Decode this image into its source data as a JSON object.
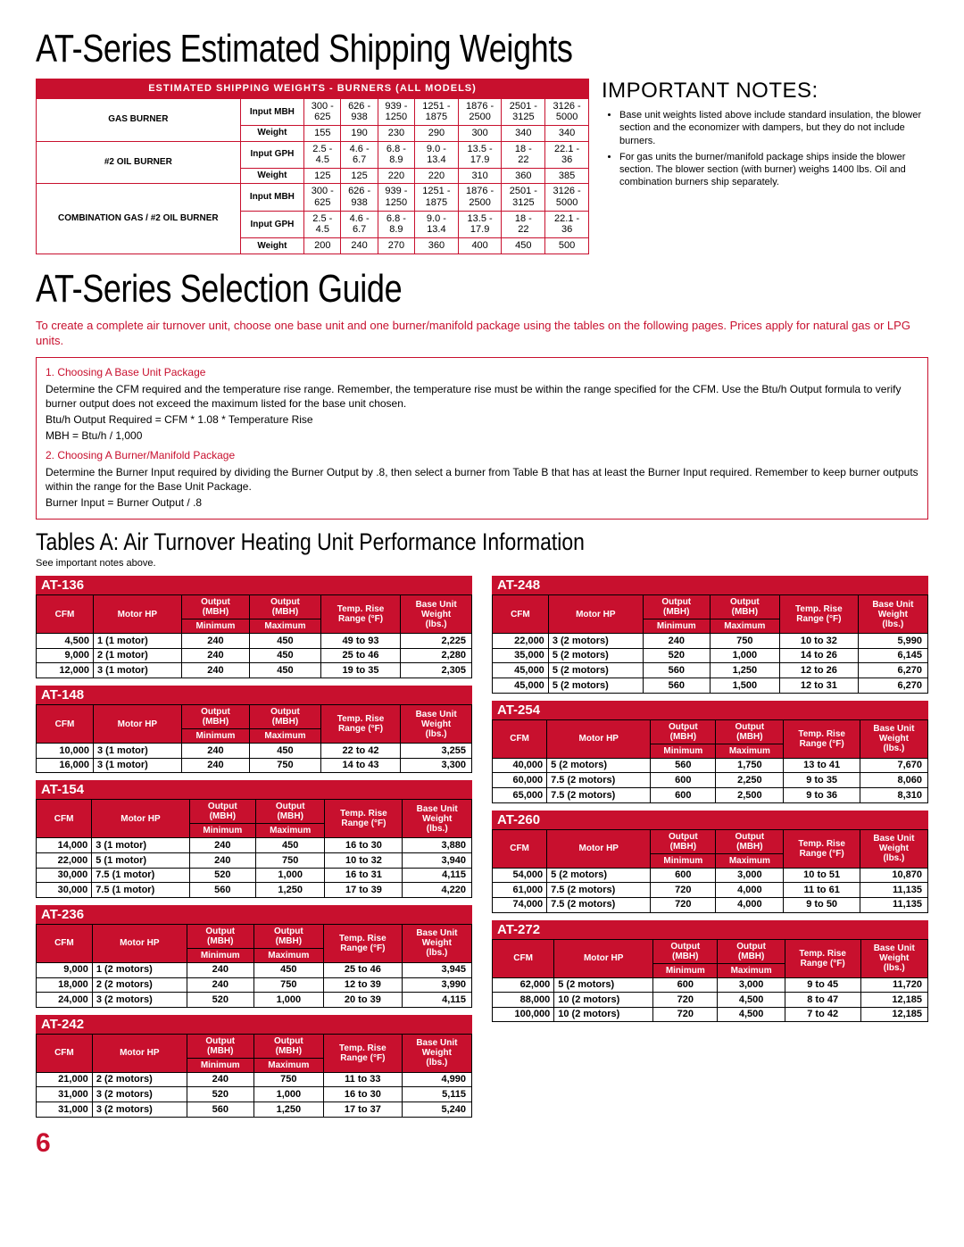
{
  "colors": {
    "accent": "#c8102e",
    "bg": "#ffffff",
    "text": "#000000"
  },
  "title1": "AT-Series Estimated Shipping Weights",
  "notesTitle": "IMPORTANT NOTES:",
  "notes": [
    "Base unit weights listed above include standard insulation, the blower section and the economizer with dampers, but they do not include burners.",
    "For gas units the burner/manifold package ships inside the blower section. The blower section (with burner) weighs 1400 lbs. Oil and combination burners ship separately."
  ],
  "shipping": {
    "header": "ESTIMATED SHIPPING WEIGHTS - BURNERS (ALL MODELS)",
    "cols": [
      "300 - 625",
      "626 - 938",
      "939 - 1250",
      "1251 - 1875",
      "1876 - 2500",
      "2501 - 3125",
      "3126 - 5000"
    ],
    "groups": [
      {
        "label": "GAS BURNER",
        "rows": [
          {
            "k": "Input MBH",
            "v": [
              "300 - 625",
              "626 - 938",
              "939 - 1250",
              "1251 - 1875",
              "1876 - 2500",
              "2501 - 3125",
              "3126 - 5000"
            ]
          },
          {
            "k": "Weight",
            "v": [
              "155",
              "190",
              "230",
              "290",
              "300",
              "340",
              "340"
            ]
          }
        ]
      },
      {
        "label": "#2 OIL BURNER",
        "rows": [
          {
            "k": "Input GPH",
            "v": [
              "2.5 - 4.5",
              "4.6 - 6.7",
              "6.8 - 8.9",
              "9.0 - 13.4",
              "13.5 - 17.9",
              "18 - 22",
              "22.1 - 36"
            ]
          },
          {
            "k": "Weight",
            "v": [
              "125",
              "125",
              "220",
              "220",
              "310",
              "360",
              "385"
            ]
          }
        ]
      },
      {
        "label": "COMBINATION GAS / #2 OIL BURNER",
        "rows": [
          {
            "k": "Input MBH",
            "v": [
              "300 - 625",
              "626 - 938",
              "939 - 1250",
              "1251 - 1875",
              "1876 - 2500",
              "2501 - 3125",
              "3126 - 5000"
            ]
          },
          {
            "k": "Input GPH",
            "v": [
              "2.5 - 4.5",
              "4.6 - 6.7",
              "6.8 - 8.9",
              "9.0 - 13.4",
              "13.5 - 17.9",
              "18 - 22",
              "22.1 - 36"
            ]
          },
          {
            "k": "Weight",
            "v": [
              "200",
              "240",
              "270",
              "360",
              "400",
              "450",
              "500"
            ]
          }
        ]
      }
    ]
  },
  "title2": "AT-Series Selection Guide",
  "intro": "To create a complete air turnover unit, choose one base unit and one burner/manifold package using the tables on the following pages. Prices apply for natural gas or LPG units.",
  "selection": {
    "step1": "1. Choosing A Base Unit Package",
    "s1a": "Determine the CFM required and the temperature rise range. Remember, the temperature rise must be within the range specified for the CFM. Use the Btu/h Output formula to verify burner output does not exceed the maximum listed for the base unit chosen.",
    "s1b": "Btu/h Output Required = CFM * 1.08 * Temperature Rise",
    "s1c": "MBH = Btu/h / 1,000",
    "step2": "2. Choosing A Burner/Manifold Package",
    "s2a": "Determine the Burner Input required by dividing the Burner Output by .8, then select a burner from Table B that has at least the Burner Input required. Remember to keep burner outputs within the range for the Base Unit Package.",
    "s2b": "Burner Input = Burner Output / .8"
  },
  "tablesTitle": "Tables A: Air Turnover Heating Unit Performance Information",
  "tablesNote": "See important notes above.",
  "perfHeaders": [
    "CFM",
    "Motor HP",
    "Output (MBH) Minimum",
    "Output (MBH) Maximum",
    "Temp. Rise Range (°F)",
    "Base Unit Weight (lbs.)"
  ],
  "leftTables": [
    {
      "name": "AT-136",
      "rows": [
        [
          "4,500",
          "1 (1 motor)",
          "240",
          "450",
          "49 to 93",
          "2,225"
        ],
        [
          "9,000",
          "2 (1 motor)",
          "240",
          "450",
          "25 to 46",
          "2,280"
        ],
        [
          "12,000",
          "3 (1 motor)",
          "240",
          "450",
          "19 to 35",
          "2,305"
        ]
      ]
    },
    {
      "name": "AT-148",
      "rows": [
        [
          "10,000",
          "3 (1 motor)",
          "240",
          "450",
          "22 to 42",
          "3,255"
        ],
        [
          "16,000",
          "3 (1 motor)",
          "240",
          "750",
          "14 to 43",
          "3,300"
        ]
      ]
    },
    {
      "name": "AT-154",
      "rows": [
        [
          "14,000",
          "3 (1 motor)",
          "240",
          "450",
          "16 to 30",
          "3,880"
        ],
        [
          "22,000",
          "5 (1 motor)",
          "240",
          "750",
          "10 to 32",
          "3,940"
        ],
        [
          "30,000",
          "7.5 (1 motor)",
          "520",
          "1,000",
          "16 to 31",
          "4,115"
        ],
        [
          "30,000",
          "7.5 (1 motor)",
          "560",
          "1,250",
          "17 to 39",
          "4,220"
        ]
      ]
    },
    {
      "name": "AT-236",
      "rows": [
        [
          "9,000",
          "1 (2 motors)",
          "240",
          "450",
          "25 to 46",
          "3,945"
        ],
        [
          "18,000",
          "2 (2 motors)",
          "240",
          "750",
          "12 to 39",
          "3,990"
        ],
        [
          "24,000",
          "3 (2 motors)",
          "520",
          "1,000",
          "20 to 39",
          "4,115"
        ]
      ]
    },
    {
      "name": "AT-242",
      "rows": [
        [
          "21,000",
          "2 (2 motors)",
          "240",
          "750",
          "11 to 33",
          "4,990"
        ],
        [
          "31,000",
          "3 (2 motors)",
          "520",
          "1,000",
          "16 to 30",
          "5,115"
        ],
        [
          "31,000",
          "3 (2 motors)",
          "560",
          "1,250",
          "17 to 37",
          "5,240"
        ]
      ]
    }
  ],
  "rightTables": [
    {
      "name": "AT-248",
      "rows": [
        [
          "22,000",
          "3 (2 motors)",
          "240",
          "750",
          "10 to 32",
          "5,990"
        ],
        [
          "35,000",
          "5 (2 motors)",
          "520",
          "1,000",
          "14 to 26",
          "6,145"
        ],
        [
          "45,000",
          "5 (2 motors)",
          "560",
          "1,250",
          "12 to 26",
          "6,270"
        ],
        [
          "45,000",
          "5 (2 motors)",
          "560",
          "1,500",
          "12 to 31",
          "6,270"
        ]
      ]
    },
    {
      "name": "AT-254",
      "rows": [
        [
          "40,000",
          "5 (2 motors)",
          "560",
          "1,750",
          "13 to 41",
          "7,670"
        ],
        [
          "60,000",
          "7.5 (2 motors)",
          "600",
          "2,250",
          "9 to 35",
          "8,060"
        ],
        [
          "65,000",
          "7.5 (2 motors)",
          "600",
          "2,500",
          "9 to 36",
          "8,310"
        ]
      ]
    },
    {
      "name": "AT-260",
      "rows": [
        [
          "54,000",
          "5 (2 motors)",
          "600",
          "3,000",
          "10 to 51",
          "10,870"
        ],
        [
          "61,000",
          "7.5 (2 motors)",
          "720",
          "4,000",
          "11 to 61",
          "11,135"
        ],
        [
          "74,000",
          "7.5 (2 motors)",
          "720",
          "4,000",
          "9 to 50",
          "11,135"
        ]
      ]
    },
    {
      "name": "AT-272",
      "rows": [
        [
          "62,000",
          "5 (2 motors)",
          "600",
          "3,000",
          "9 to 45",
          "11,720"
        ],
        [
          "88,000",
          "10 (2 motors)",
          "720",
          "4,500",
          "8 to 47",
          "12,185"
        ],
        [
          "100,000",
          "10 (2 motors)",
          "720",
          "4,500",
          "7 to 42",
          "12,185"
        ]
      ]
    }
  ],
  "pageNum": "6"
}
